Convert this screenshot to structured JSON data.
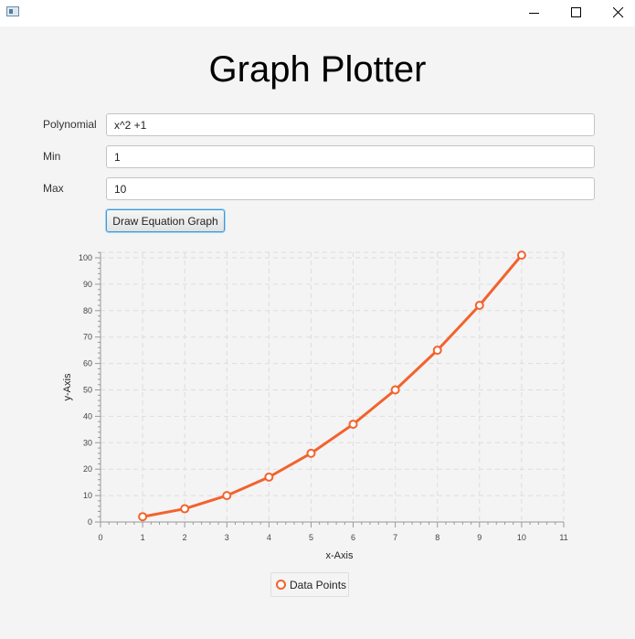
{
  "window": {
    "title": ""
  },
  "header": {
    "title": "Graph Plotter"
  },
  "form": {
    "polynomial_label": "Polynomial",
    "polynomial_value": "x^2 +1",
    "min_label": "Min",
    "min_value": "1",
    "max_label": "Max",
    "max_value": "10",
    "draw_button_label": "Draw Equation Graph"
  },
  "colors": {
    "series": "#f3622d",
    "grid": "#dddddd",
    "axis": "#999999"
  },
  "chart_data": {
    "type": "line",
    "xlabel": "x-Axis",
    "ylabel": "y-Axis",
    "xlim": [
      0,
      11
    ],
    "ylim": [
      0,
      100
    ],
    "x_ticks": [
      0,
      1,
      2,
      3,
      4,
      5,
      6,
      7,
      8,
      9,
      10,
      11
    ],
    "y_ticks": [
      0,
      10,
      20,
      30,
      40,
      50,
      60,
      70,
      80,
      90,
      100
    ],
    "grid": true,
    "legend_position": "bottom",
    "series": [
      {
        "name": "Data Points",
        "x": [
          1,
          2,
          3,
          4,
          5,
          6,
          7,
          8,
          9,
          10
        ],
        "y": [
          2,
          5,
          10,
          17,
          26,
          37,
          50,
          65,
          82,
          101
        ]
      }
    ]
  }
}
